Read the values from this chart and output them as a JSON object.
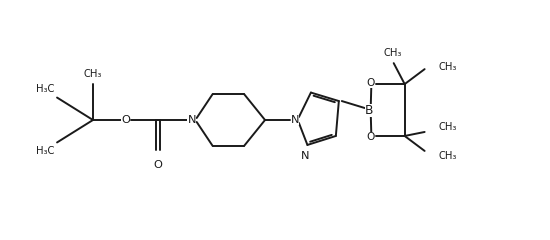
{
  "bg_color": "#ffffff",
  "line_color": "#1a1a1a",
  "line_width": 1.4,
  "font_size": 7.2,
  "fig_width": 5.5,
  "fig_height": 2.4,
  "dpi": 100,
  "xlim": [
    0,
    11
  ],
  "ylim": [
    0,
    4.5
  ]
}
